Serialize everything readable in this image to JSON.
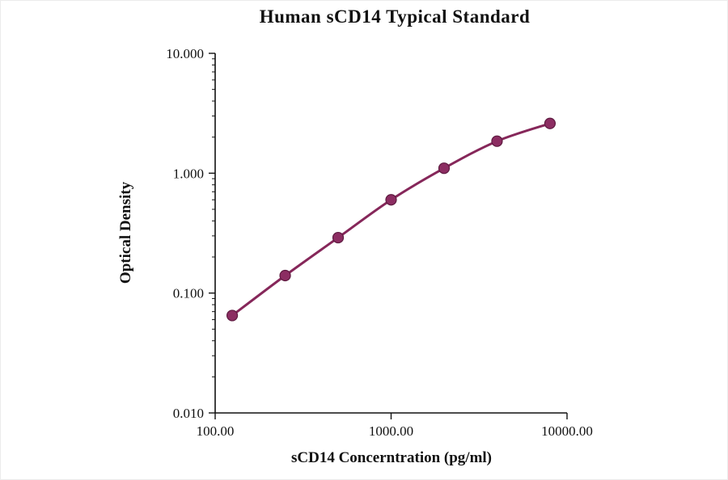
{
  "chart_data": {
    "type": "line",
    "title": "Human sCD14 Typical Standard",
    "xlabel": "sCD14 Concerntration (pg/ml)",
    "ylabel": "Optical Density",
    "x": [
      125,
      250,
      500,
      1000,
      2000,
      4000,
      8000
    ],
    "y": [
      0.065,
      0.14,
      0.29,
      0.6,
      1.1,
      1.85,
      2.6
    ],
    "xscale": "log",
    "yscale": "log",
    "xlim": [
      100,
      10000
    ],
    "ylim": [
      0.01,
      10
    ],
    "x_tick_values": [
      100,
      1000,
      10000
    ],
    "x_tick_labels": [
      "100.00",
      "1000.00",
      "10000.00"
    ],
    "y_tick_values": [
      0.01,
      0.1,
      1,
      10
    ],
    "y_tick_labels": [
      "0.010",
      "0.100",
      "1.000",
      "10.000"
    ],
    "grid": false,
    "legend": null,
    "line_color": "#86275a",
    "marker_color": "#8c2d62",
    "marker_edge_color": "#5e1b40",
    "axis_color": "#111111"
  }
}
